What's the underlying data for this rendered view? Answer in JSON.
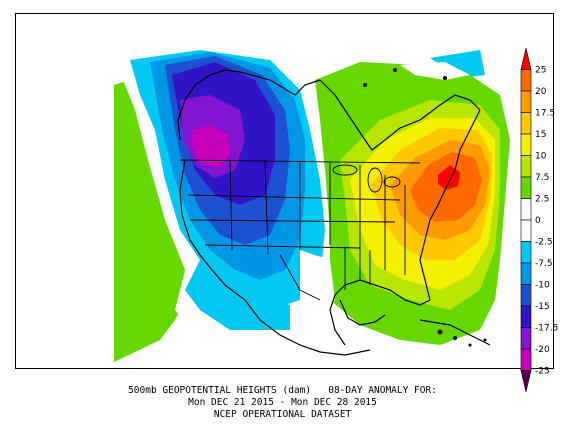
{
  "caption": {
    "line1": "500mb GEOPOTENTIAL HEIGHTS (dam)   08-DAY ANOMALY FOR:",
    "line2": "Mon DEC 21 2015 - Mon DEC 28 2015",
    "line3": "NCEP OPERATIONAL DATASET"
  },
  "colorbar": {
    "bins": [
      {
        "color": "#ff0000",
        "label": "25"
      },
      {
        "color": "#ff6a00",
        "label": "20"
      },
      {
        "color": "#ff9a00",
        "label": "17.5"
      },
      {
        "color": "#ffc800",
        "label": "15"
      },
      {
        "color": "#f4f000",
        "label": "10"
      },
      {
        "color": "#b8e600",
        "label": "7.5"
      },
      {
        "color": "#66d800",
        "label": "2.5"
      },
      {
        "color": "#ffffff",
        "label": "0"
      },
      {
        "color": "#ffffff",
        "label": "-2.5"
      },
      {
        "color": "#00c8f0",
        "label": "-7.5"
      },
      {
        "color": "#0096e6",
        "label": "-10"
      },
      {
        "color": "#1e50d2",
        "label": "-15"
      },
      {
        "color": "#3214c8",
        "label": "-17.5"
      },
      {
        "color": "#8214d2",
        "label": "-20"
      },
      {
        "color": "#c800be",
        "label": "-25"
      },
      {
        "color": "#5a0050",
        "label": ""
      }
    ]
  }
}
